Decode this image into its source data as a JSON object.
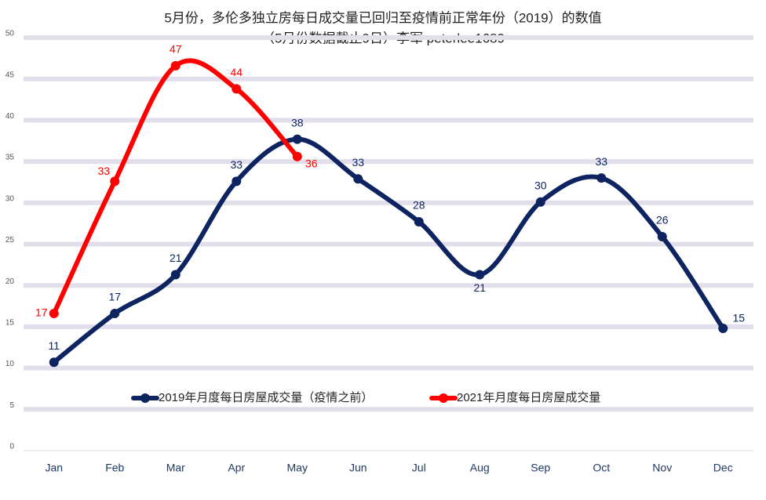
{
  "chart_data": {
    "type": "line",
    "title": "5月份，多伦多独立房每日成交量已回归至疫情前正常年份（2019）的数值",
    "subtitle": "（5月份数据截止9日）李军 peterlee1689",
    "categories": [
      "Jan",
      "Feb",
      "Mar",
      "Apr",
      "May",
      "Jun",
      "Jul",
      "Aug",
      "Sep",
      "Oct",
      "Nov",
      "Dec"
    ],
    "series": [
      {
        "name": "2019年月度每日房屋成交量（疫情之前）",
        "color": "#0d2460",
        "values": [
          10.7,
          16.6,
          21.3,
          32.6,
          37.7,
          32.9,
          27.7,
          21.3,
          30.1,
          33.0,
          25.9,
          14.8
        ],
        "value_labels": [
          "11",
          "17",
          "21",
          "33",
          "38",
          "33",
          "28",
          "21",
          "30",
          "33",
          "26",
          "15"
        ]
      },
      {
        "name": "2021年月度每日房屋成交量",
        "color": "#ff0000",
        "values": [
          16.6,
          32.6,
          46.6,
          43.8,
          35.6,
          null,
          null,
          null,
          null,
          null,
          null,
          null
        ],
        "value_labels": [
          "17",
          "33",
          "47",
          "44",
          "36",
          null,
          null,
          null,
          null,
          null,
          null,
          null
        ]
      }
    ],
    "ylim": [
      0,
      50
    ],
    "yticks": [
      0,
      5,
      10,
      15,
      20,
      25,
      30,
      35,
      40,
      45,
      50
    ],
    "grid": true
  }
}
